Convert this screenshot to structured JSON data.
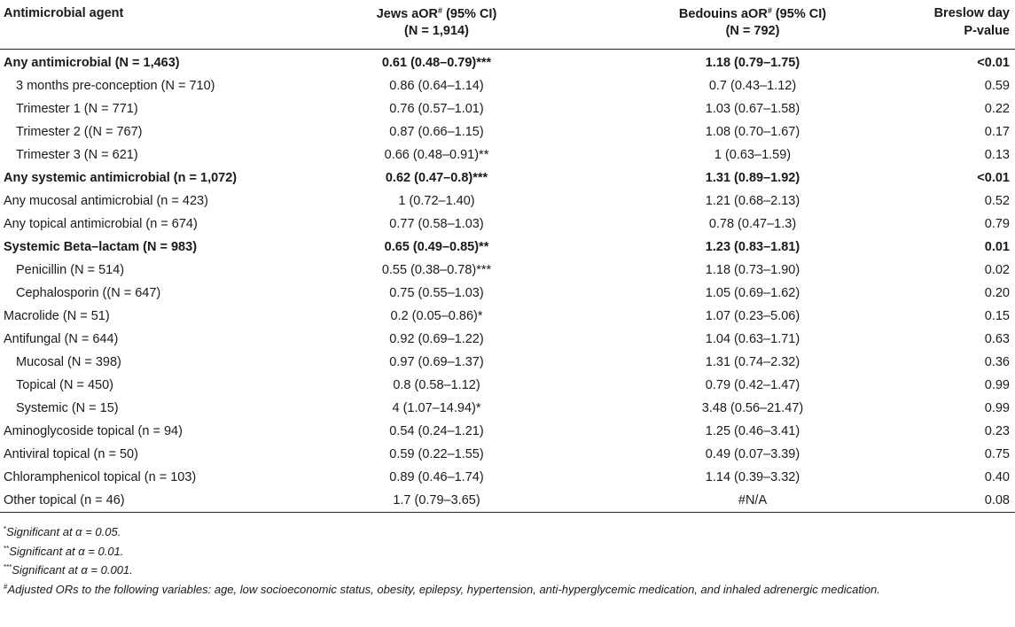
{
  "header": {
    "col1": "Antimicrobial agent",
    "col2_line1_a": "Jews aOR",
    "col2_sup": "#",
    "col2_line1_b": " (95% CI)",
    "col2_line2": "(N = 1,914)",
    "col3_line1_a": "Bedouins aOR",
    "col3_sup": "#",
    "col3_line1_b": " (95% CI)",
    "col3_line2": "(N = 792)",
    "col4_line1": "Breslow day",
    "col4_line2": "P-value"
  },
  "rows": [
    {
      "agent": "Any antimicrobial (N = 1,463)",
      "jews": "0.61 (0.48–0.79)***",
      "bedouins": "1.18 (0.79–1.75)",
      "p": "<0.01",
      "bold": true,
      "indent": false
    },
    {
      "agent": "3 months pre-conception (N = 710)",
      "jews": "0.86 (0.64–1.14)",
      "bedouins": "0.7 (0.43–1.12)",
      "p": "0.59",
      "bold": false,
      "indent": true
    },
    {
      "agent": "Trimester 1 (N = 771)",
      "jews": "0.76 (0.57–1.01)",
      "bedouins": "1.03 (0.67–1.58)",
      "p": "0.22",
      "bold": false,
      "indent": true
    },
    {
      "agent": "Trimester 2 ((N = 767)",
      "jews": "0.87 (0.66–1.15)",
      "bedouins": "1.08 (0.70–1.67)",
      "p": "0.17",
      "bold": false,
      "indent": true
    },
    {
      "agent": "Trimester 3 (N = 621)",
      "jews": "0.66 (0.48–0.91)**",
      "bedouins": "1 (0.63–1.59)",
      "p": "0.13",
      "bold": false,
      "indent": true
    },
    {
      "agent": "Any systemic antimicrobial (n = 1,072)",
      "jews": "0.62 (0.47–0.8)***",
      "bedouins": "1.31 (0.89–1.92)",
      "p": "<0.01",
      "bold": true,
      "indent": false
    },
    {
      "agent": "Any mucosal antimicrobial (n = 423)",
      "jews": "1 (0.72–1.40)",
      "bedouins": "1.21 (0.68–2.13)",
      "p": "0.52",
      "bold": false,
      "indent": false
    },
    {
      "agent": "Any topical antimicrobial (n = 674)",
      "jews": "0.77 (0.58–1.03)",
      "bedouins": "0.78 (0.47–1.3)",
      "p": "0.79",
      "bold": false,
      "indent": false
    },
    {
      "agent": "Systemic Beta–lactam (N = 983)",
      "jews": "0.65 (0.49–0.85)**",
      "bedouins": "1.23 (0.83–1.81)",
      "p": "0.01",
      "bold": true,
      "indent": false
    },
    {
      "agent": "Penicillin (N = 514)",
      "jews": "0.55 (0.38–0.78)***",
      "bedouins": "1.18 (0.73–1.90)",
      "p": "0.02",
      "bold": false,
      "indent": true
    },
    {
      "agent": "Cephalosporin ((N = 647)",
      "jews": "0.75 (0.55–1.03)",
      "bedouins": "1.05 (0.69–1.62)",
      "p": "0.20",
      "bold": false,
      "indent": true
    },
    {
      "agent": "Macrolide (N = 51)",
      "jews": "0.2 (0.05–0.86)*",
      "bedouins": "1.07 (0.23–5.06)",
      "p": "0.15",
      "bold": false,
      "indent": false
    },
    {
      "agent": "Antifungal (N = 644)",
      "jews": "0.92 (0.69–1.22)",
      "bedouins": "1.04 (0.63–1.71)",
      "p": "0.63",
      "bold": false,
      "indent": false
    },
    {
      "agent": "Mucosal (N = 398)",
      "jews": "0.97 (0.69–1.37)",
      "bedouins": "1.31 (0.74–2.32)",
      "p": "0.36",
      "bold": false,
      "indent": true
    },
    {
      "agent": "Topical (N = 450)",
      "jews": "0.8 (0.58–1.12)",
      "bedouins": "0.79 (0.42–1.47)",
      "p": "0.99",
      "bold": false,
      "indent": true
    },
    {
      "agent": "Systemic (N = 15)",
      "jews": "4 (1.07–14.94)*",
      "bedouins": "3.48 (0.56–21.47)",
      "p": "0.99",
      "bold": false,
      "indent": true
    },
    {
      "agent": "Aminoglycoside topical (n = 94)",
      "jews": "0.54 (0.24–1.21)",
      "bedouins": "1.25 (0.46–3.41)",
      "p": "0.23",
      "bold": false,
      "indent": false
    },
    {
      "agent": "Antiviral topical (n = 50)",
      "jews": "0.59 (0.22–1.55)",
      "bedouins": "0.49 (0.07–3.39)",
      "p": "0.75",
      "bold": false,
      "indent": false
    },
    {
      "agent": "Chloramphenicol topical (n = 103)",
      "jews": "0.89 (0.46–1.74)",
      "bedouins": "1.14 (0.39–3.32)",
      "p": "0.40",
      "bold": false,
      "indent": false
    },
    {
      "agent": "Other topical (n = 46)",
      "jews": "1.7 (0.79–3.65)",
      "bedouins": "#N/A",
      "p": "0.08",
      "bold": false,
      "indent": false
    }
  ],
  "notes": [
    {
      "mark": "*",
      "text": "Significant at α = 0.05."
    },
    {
      "mark": "**",
      "text": "Significant at α = 0.01."
    },
    {
      "mark": "***",
      "text": "Significant at α = 0.001."
    },
    {
      "mark": "#",
      "text": "Adjusted ORs to the following variables: age, low socioeconomic status, obesity, epilepsy, hypertension, anti-hyperglycemic medication, and inhaled adrenergic medication."
    }
  ]
}
